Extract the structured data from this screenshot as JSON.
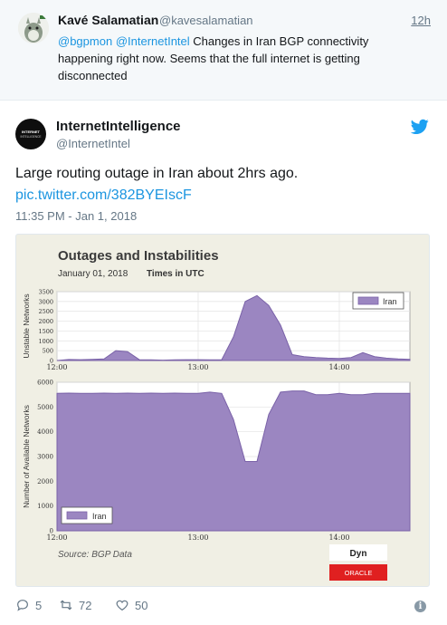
{
  "reply_tweet": {
    "author_name": "Kavé Salamatian",
    "author_handle": "@kavesalamatian",
    "time": "12h",
    "mention1": "@bgpmon",
    "mention2": "@InternetIntel",
    "text": " Changes in Iran BGP connectivity happening right now. Seems that the full internet is getting disconnected"
  },
  "main_tweet": {
    "author_name": "InternetIntelligence",
    "author_handle": "@InternetIntel",
    "avatar_text": "INTERNET INTELLIGENCE",
    "text": "Large routing outage in Iran about 2hrs ago.",
    "link": "pic.twitter.com/382BYEIscF",
    "timestamp": "11:35 PM - Jan 1, 2018"
  },
  "actions": {
    "reply_count": "5",
    "retweet_count": "72",
    "like_count": "50"
  },
  "colors": {
    "series_fill": "#9b86c1",
    "series_stroke": "#7a62a8",
    "link_blue": "#1b95e0",
    "chart_bg": "#f0efe4"
  },
  "chart_data": [
    {
      "type": "area",
      "title": "Outages and Instabilities",
      "subtitle_date": "January 01, 2018",
      "subtitle_tz": "Times in UTC",
      "ylabel": "Unstable Networks",
      "ylim": [
        0,
        3500
      ],
      "yticks": [
        0,
        500,
        1000,
        1500,
        2000,
        2500,
        3000,
        3500
      ],
      "xticks": [
        "12:00",
        "13:00",
        "14:00"
      ],
      "legend": "top-right",
      "series": [
        {
          "name": "Iran",
          "x": [
            "12:00",
            "12:05",
            "12:10",
            "12:15",
            "12:20",
            "12:25",
            "12:30",
            "12:35",
            "12:40",
            "12:45",
            "12:50",
            "12:55",
            "13:00",
            "13:05",
            "13:10",
            "13:15",
            "13:20",
            "13:25",
            "13:30",
            "13:35",
            "13:40",
            "13:45",
            "13:50",
            "13:55",
            "14:00",
            "14:05",
            "14:10",
            "14:15",
            "14:20",
            "14:25",
            "14:30"
          ],
          "values": [
            0,
            50,
            40,
            60,
            80,
            500,
            450,
            40,
            30,
            20,
            30,
            40,
            40,
            30,
            40,
            1200,
            3000,
            3300,
            2800,
            1800,
            300,
            200,
            150,
            120,
            100,
            150,
            400,
            200,
            120,
            80,
            60
          ]
        }
      ]
    },
    {
      "type": "area",
      "ylabel": "Number of Available Networks",
      "ylim": [
        0,
        6000
      ],
      "yticks": [
        0,
        1000,
        2000,
        3000,
        4000,
        5000,
        6000
      ],
      "xticks": [
        "12:00",
        "13:00",
        "14:00"
      ],
      "legend": "bottom-left",
      "series": [
        {
          "name": "Iran",
          "x": [
            "12:00",
            "12:05",
            "12:10",
            "12:15",
            "12:20",
            "12:25",
            "12:30",
            "12:35",
            "12:40",
            "12:45",
            "12:50",
            "12:55",
            "13:00",
            "13:05",
            "13:10",
            "13:15",
            "13:20",
            "13:25",
            "13:30",
            "13:35",
            "13:40",
            "13:45",
            "13:50",
            "13:55",
            "14:00",
            "14:05",
            "14:10",
            "14:15",
            "14:20",
            "14:25",
            "14:30"
          ],
          "values": [
            5550,
            5560,
            5550,
            5550,
            5560,
            5550,
            5560,
            5550,
            5560,
            5550,
            5560,
            5550,
            5550,
            5600,
            5550,
            4500,
            2800,
            2800,
            4700,
            5600,
            5650,
            5650,
            5500,
            5500,
            5550,
            5500,
            5500,
            5550,
            5550,
            5550,
            5550
          ]
        }
      ]
    }
  ],
  "chart_footer": {
    "source": "Source:  BGP Data",
    "logo_dyn": "Dyn",
    "logo_oracle": "ORACLE"
  }
}
